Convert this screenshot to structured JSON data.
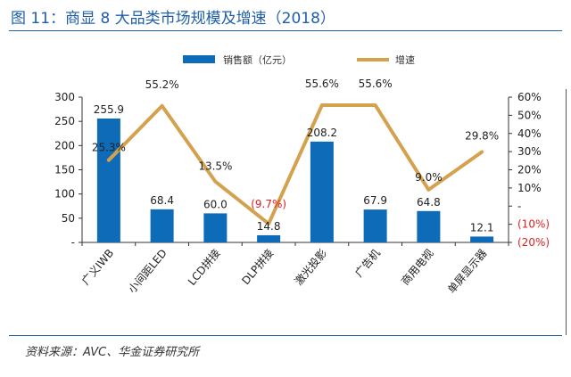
{
  "figure": {
    "title": "图 11：商显 8 大品类市场规模及增速（2018）",
    "source": "资料来源：AVC、华金证券研究所"
  },
  "chart_data": {
    "type": "bar",
    "categories": [
      "广义IWB",
      "小间距LED",
      "LCD拼接",
      "DLP拼接",
      "激光投影",
      "广告机",
      "商用电视",
      "单屏显示器"
    ],
    "series": [
      {
        "name": "销售额（亿元）",
        "type": "bar",
        "axis": "left",
        "values": [
          255.9,
          68.4,
          60.0,
          14.8,
          208.2,
          67.9,
          64.8,
          12.1
        ],
        "labels": [
          "255.9",
          "68.4",
          "60.0",
          "14.8",
          "208.2",
          "67.9",
          "64.8",
          "12.1"
        ],
        "color": "#0e6bb7"
      },
      {
        "name": "增速",
        "type": "line",
        "axis": "right",
        "values": [
          25.3,
          55.2,
          13.5,
          -9.7,
          55.6,
          55.6,
          9.0,
          29.8
        ],
        "labels": [
          "25.3%",
          "55.2%",
          "13.5%",
          "(9.7%)",
          "55.6%",
          "55.6%",
          "9.0%",
          "29.8%"
        ],
        "color": "#d4a24f"
      }
    ],
    "y_left": {
      "ylim": [
        0,
        300
      ],
      "ticks": [
        "-",
        "50",
        "100",
        "150",
        "200",
        "250",
        "300"
      ]
    },
    "y_right": {
      "ylim": [
        -20,
        60
      ],
      "ticks": [
        "(20%)",
        "(10%)",
        "-",
        "10%",
        "20%",
        "30%",
        "40%",
        "50%",
        "60%"
      ]
    },
    "legend": {
      "placement": "top-center"
    },
    "grid": false,
    "negative_label_color": "#e02020"
  }
}
